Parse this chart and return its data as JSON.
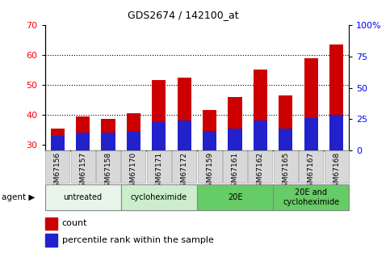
{
  "title": "GDS2674 / 142100_at",
  "samples": [
    "GSM67156",
    "GSM67157",
    "GSM67158",
    "GSM67170",
    "GSM67171",
    "GSM67172",
    "GSM67159",
    "GSM67161",
    "GSM67162",
    "GSM67165",
    "GSM67167",
    "GSM67168"
  ],
  "count_values": [
    35.5,
    39.5,
    38.5,
    40.5,
    51.5,
    52.5,
    41.5,
    46.0,
    55.0,
    46.5,
    59.0,
    63.5
  ],
  "percentile_values": [
    33.0,
    34.0,
    34.0,
    34.5,
    37.5,
    38.0,
    34.5,
    35.5,
    38.0,
    35.5,
    39.0,
    40.0
  ],
  "ymin": 28,
  "ymax": 70,
  "yticks_left": [
    30,
    40,
    50,
    60,
    70
  ],
  "yticks_right": [
    0,
    25,
    50,
    75,
    100
  ],
  "bar_color_red": "#cc0000",
  "bar_color_blue": "#2222cc",
  "bar_width": 0.55,
  "groups": [
    {
      "label": "untreated",
      "start": 0,
      "end": 3,
      "color": "#e8f5e9"
    },
    {
      "label": "cycloheximide",
      "start": 3,
      "end": 6,
      "color": "#cceecc"
    },
    {
      "label": "20E",
      "start": 6,
      "end": 9,
      "color": "#66cc66"
    },
    {
      "label": "20E and\ncycloheximide",
      "start": 9,
      "end": 12,
      "color": "#66cc66"
    }
  ],
  "dotted_lines": [
    40,
    50,
    60
  ],
  "legend_count": "count",
  "legend_percentile": "percentile rank within the sample"
}
